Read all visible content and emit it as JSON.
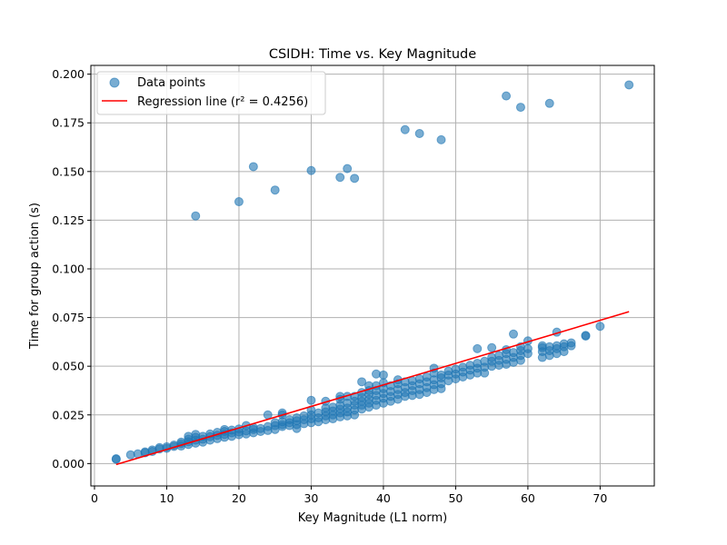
{
  "chart_data": {
    "type": "scatter",
    "title": "CSIDH: Time vs. Key Magnitude",
    "xlabel": "Key Magnitude (L1 norm)",
    "ylabel": "Time for group action (s)",
    "xlim": [
      -0.5,
      77.5
    ],
    "ylim": [
      -0.0115,
      0.2045
    ],
    "x_ticks": [
      0,
      10,
      20,
      30,
      40,
      50,
      60,
      70
    ],
    "y_ticks": [
      0.0,
      0.025,
      0.05,
      0.075,
      0.1,
      0.125,
      0.15,
      0.175,
      0.2
    ],
    "x_tick_labels": [
      "0",
      "10",
      "20",
      "30",
      "40",
      "50",
      "60",
      "70"
    ],
    "y_tick_labels": [
      "0.000",
      "0.025",
      "0.050",
      "0.075",
      "0.100",
      "0.125",
      "0.150",
      "0.175",
      "0.200"
    ],
    "grid": true,
    "legend_position": "top-left",
    "legend": [
      {
        "label": "Data points",
        "marker": "circle",
        "color": "#1f77b4"
      },
      {
        "label": "Regression line (r² = 0.4256)",
        "marker": "line",
        "color": "#ff0000"
      }
    ],
    "series": [
      {
        "name": "Data points",
        "kind": "scatter",
        "color": "#1f77b4",
        "points": [
          [
            3,
            0.0025
          ],
          [
            3,
            0.0022
          ],
          [
            5,
            0.0045
          ],
          [
            6,
            0.005
          ],
          [
            7,
            0.0055
          ],
          [
            7,
            0.006
          ],
          [
            8,
            0.0062
          ],
          [
            8,
            0.007
          ],
          [
            9,
            0.0075
          ],
          [
            9,
            0.0082
          ],
          [
            10,
            0.0078
          ],
          [
            10,
            0.0086
          ],
          [
            11,
            0.0088
          ],
          [
            11,
            0.0095
          ],
          [
            12,
            0.009
          ],
          [
            12,
            0.0102
          ],
          [
            12,
            0.011
          ],
          [
            13,
            0.0098
          ],
          [
            13,
            0.0112
          ],
          [
            13,
            0.0125
          ],
          [
            13,
            0.014
          ],
          [
            14,
            0.0105
          ],
          [
            14,
            0.012
          ],
          [
            14,
            0.0135
          ],
          [
            14,
            0.015
          ],
          [
            15,
            0.011
          ],
          [
            15,
            0.0125
          ],
          [
            15,
            0.014
          ],
          [
            16,
            0.012
          ],
          [
            16,
            0.0138
          ],
          [
            16,
            0.0152
          ],
          [
            17,
            0.0128
          ],
          [
            17,
            0.0145
          ],
          [
            17,
            0.016
          ],
          [
            18,
            0.0135
          ],
          [
            18,
            0.015
          ],
          [
            18,
            0.0165
          ],
          [
            18,
            0.0175
          ],
          [
            19,
            0.014
          ],
          [
            19,
            0.0158
          ],
          [
            19,
            0.0172
          ],
          [
            20,
            0.0148
          ],
          [
            20,
            0.0162
          ],
          [
            20,
            0.0178
          ],
          [
            21,
            0.0152
          ],
          [
            21,
            0.0168
          ],
          [
            21,
            0.0195
          ],
          [
            22,
            0.0158
          ],
          [
            22,
            0.0175
          ],
          [
            22,
            0.0185
          ],
          [
            23,
            0.0165
          ],
          [
            23,
            0.018
          ],
          [
            24,
            0.017
          ],
          [
            24,
            0.019
          ],
          [
            24,
            0.025
          ],
          [
            25,
            0.0175
          ],
          [
            25,
            0.0195
          ],
          [
            25,
            0.021
          ],
          [
            26,
            0.019
          ],
          [
            26,
            0.02
          ],
          [
            26,
            0.0215
          ],
          [
            26,
            0.025
          ],
          [
            26,
            0.026
          ],
          [
            27,
            0.0195
          ],
          [
            27,
            0.021
          ],
          [
            27,
            0.0225
          ],
          [
            28,
            0.018
          ],
          [
            28,
            0.02
          ],
          [
            28,
            0.022
          ],
          [
            28,
            0.0235
          ],
          [
            29,
            0.0205
          ],
          [
            29,
            0.0225
          ],
          [
            29,
            0.0245
          ],
          [
            30,
            0.021
          ],
          [
            30,
            0.023
          ],
          [
            30,
            0.025
          ],
          [
            30,
            0.0275
          ],
          [
            30,
            0.0325
          ],
          [
            31,
            0.0215
          ],
          [
            31,
            0.0235
          ],
          [
            31,
            0.026
          ],
          [
            32,
            0.0225
          ],
          [
            32,
            0.0245
          ],
          [
            32,
            0.0265
          ],
          [
            32,
            0.0285
          ],
          [
            32,
            0.032
          ],
          [
            33,
            0.023
          ],
          [
            33,
            0.025
          ],
          [
            33,
            0.027
          ],
          [
            33,
            0.029
          ],
          [
            34,
            0.024
          ],
          [
            34,
            0.026
          ],
          [
            34,
            0.028
          ],
          [
            34,
            0.03
          ],
          [
            34,
            0.033
          ],
          [
            34,
            0.0345
          ],
          [
            35,
            0.0245
          ],
          [
            35,
            0.0265
          ],
          [
            35,
            0.0285
          ],
          [
            35,
            0.031
          ],
          [
            35,
            0.0345
          ],
          [
            36,
            0.025
          ],
          [
            36,
            0.0275
          ],
          [
            36,
            0.03
          ],
          [
            36,
            0.032
          ],
          [
            36,
            0.0345
          ],
          [
            37,
            0.028
          ],
          [
            37,
            0.03
          ],
          [
            37,
            0.032
          ],
          [
            37,
            0.034
          ],
          [
            37,
            0.0365
          ],
          [
            37,
            0.042
          ],
          [
            38,
            0.029
          ],
          [
            38,
            0.031
          ],
          [
            38,
            0.033
          ],
          [
            38,
            0.0355
          ],
          [
            38,
            0.0375
          ],
          [
            38,
            0.04
          ],
          [
            39,
            0.03
          ],
          [
            39,
            0.0325
          ],
          [
            39,
            0.035
          ],
          [
            39,
            0.0375
          ],
          [
            39,
            0.04
          ],
          [
            39,
            0.046
          ],
          [
            40,
            0.031
          ],
          [
            40,
            0.0335
          ],
          [
            40,
            0.036
          ],
          [
            40,
            0.0385
          ],
          [
            40,
            0.0415
          ],
          [
            40,
            0.0455
          ],
          [
            41,
            0.032
          ],
          [
            41,
            0.0345
          ],
          [
            41,
            0.037
          ],
          [
            41,
            0.04
          ],
          [
            42,
            0.033
          ],
          [
            42,
            0.0355
          ],
          [
            42,
            0.038
          ],
          [
            42,
            0.041
          ],
          [
            42,
            0.043
          ],
          [
            43,
            0.0345
          ],
          [
            43,
            0.0365
          ],
          [
            43,
            0.039
          ],
          [
            43,
            0.042
          ],
          [
            44,
            0.035
          ],
          [
            44,
            0.0375
          ],
          [
            44,
            0.04
          ],
          [
            44,
            0.0425
          ],
          [
            45,
            0.0355
          ],
          [
            45,
            0.038
          ],
          [
            45,
            0.041
          ],
          [
            45,
            0.0435
          ],
          [
            46,
            0.0365
          ],
          [
            46,
            0.039
          ],
          [
            46,
            0.042
          ],
          [
            46,
            0.0445
          ],
          [
            47,
            0.038
          ],
          [
            47,
            0.0405
          ],
          [
            47,
            0.043
          ],
          [
            47,
            0.0465
          ],
          [
            47,
            0.049
          ],
          [
            48,
            0.0385
          ],
          [
            48,
            0.041
          ],
          [
            48,
            0.044
          ],
          [
            48,
            0.0455
          ],
          [
            49,
            0.0425
          ],
          [
            49,
            0.0455
          ],
          [
            49,
            0.0475
          ],
          [
            50,
            0.0435
          ],
          [
            50,
            0.046
          ],
          [
            50,
            0.0485
          ],
          [
            51,
            0.0445
          ],
          [
            51,
            0.047
          ],
          [
            51,
            0.0495
          ],
          [
            52,
            0.0455
          ],
          [
            52,
            0.048
          ],
          [
            52,
            0.0505
          ],
          [
            53,
            0.0465
          ],
          [
            53,
            0.049
          ],
          [
            53,
            0.0515
          ],
          [
            53,
            0.059
          ],
          [
            54,
            0.0465
          ],
          [
            54,
            0.0495
          ],
          [
            54,
            0.0525
          ],
          [
            55,
            0.05
          ],
          [
            55,
            0.0525
          ],
          [
            55,
            0.0545
          ],
          [
            55,
            0.0595
          ],
          [
            56,
            0.0505
          ],
          [
            56,
            0.053
          ],
          [
            56,
            0.0555
          ],
          [
            57,
            0.051
          ],
          [
            57,
            0.0535
          ],
          [
            57,
            0.0565
          ],
          [
            57,
            0.0585
          ],
          [
            58,
            0.052
          ],
          [
            58,
            0.0545
          ],
          [
            58,
            0.057
          ],
          [
            58,
            0.0665
          ],
          [
            59,
            0.053
          ],
          [
            59,
            0.0555
          ],
          [
            59,
            0.058
          ],
          [
            59,
            0.06
          ],
          [
            60,
            0.0565
          ],
          [
            60,
            0.059
          ],
          [
            60,
            0.063
          ],
          [
            62,
            0.0545
          ],
          [
            62,
            0.0575
          ],
          [
            62,
            0.0595
          ],
          [
            62,
            0.0605
          ],
          [
            63,
            0.0555
          ],
          [
            63,
            0.058
          ],
          [
            63,
            0.06
          ],
          [
            64,
            0.0565
          ],
          [
            64,
            0.059
          ],
          [
            64,
            0.0605
          ],
          [
            64,
            0.0675
          ],
          [
            65,
            0.0575
          ],
          [
            65,
            0.06
          ],
          [
            65,
            0.0615
          ],
          [
            66,
            0.0605
          ],
          [
            66,
            0.062
          ],
          [
            68,
            0.0655
          ],
          [
            68,
            0.0658
          ],
          [
            70,
            0.0705
          ],
          [
            14,
            0.1272
          ],
          [
            20,
            0.1345
          ],
          [
            22,
            0.1525
          ],
          [
            25,
            0.1405
          ],
          [
            30,
            0.1505
          ],
          [
            34,
            0.147
          ],
          [
            35,
            0.1515
          ],
          [
            36,
            0.1465
          ],
          [
            43,
            0.1715
          ],
          [
            45,
            0.1695
          ],
          [
            48,
            0.1663
          ],
          [
            57,
            0.1888
          ],
          [
            59,
            0.183
          ],
          [
            63,
            0.185
          ],
          [
            74,
            0.1945
          ]
        ]
      },
      {
        "name": "Regression line (r² = 0.4256)",
        "kind": "line",
        "color": "#ff0000",
        "points": [
          [
            3,
            -0.0005
          ],
          [
            74,
            0.078
          ]
        ]
      }
    ]
  }
}
